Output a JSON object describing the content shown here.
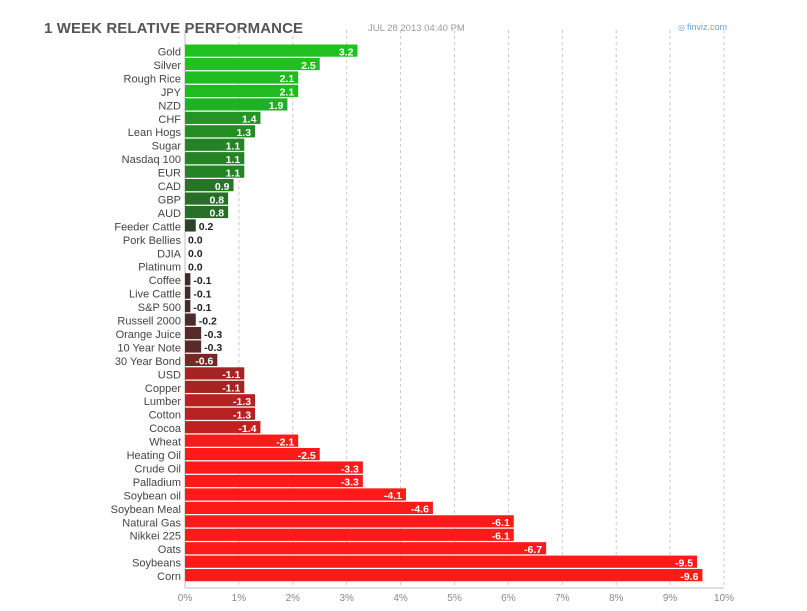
{
  "header": {
    "title": "1 WEEK RELATIVE PERFORMANCE",
    "timestamp": "JUL 28 2013 04:40 PM",
    "brand": "finviz.com",
    "brand_icon": "finviz-logo-icon"
  },
  "colors": {
    "positive_strong": "#1fc01f",
    "negative_strong": "#ff1a1a",
    "neutral_dark": "#2e2e2e",
    "grid": "#c8c8c8",
    "axis": "#bfbfbf"
  },
  "chart_data": {
    "type": "bar",
    "orientation": "horizontal",
    "title": "1 WEEK RELATIVE PERFORMANCE",
    "xlabel": "",
    "ylabel": "",
    "xlim": [
      0,
      10
    ],
    "xticks": [
      "0%",
      "1%",
      "2%",
      "3%",
      "4%",
      "5%",
      "6%",
      "7%",
      "8%",
      "9%",
      "10%"
    ],
    "grid": true,
    "categories": [
      "Gold",
      "Silver",
      "Rough Rice",
      "JPY",
      "NZD",
      "CHF",
      "Lean Hogs",
      "Sugar",
      "Nasdaq 100",
      "EUR",
      "CAD",
      "GBP",
      "AUD",
      "Feeder Cattle",
      "Pork Bellies",
      "DJIA",
      "Platinum",
      "Coffee",
      "Live Cattle",
      "S&P 500",
      "Russell 2000",
      "Orange Juice",
      "10 Year Note",
      "30 Year Bond",
      "USD",
      "Copper",
      "Lumber",
      "Cotton",
      "Cocoa",
      "Wheat",
      "Heating Oil",
      "Crude Oil",
      "Palladium",
      "Soybean oil",
      "Soybean Meal",
      "Natural Gas",
      "Nikkei 225",
      "Oats",
      "Soybeans",
      "Corn"
    ],
    "values": [
      3.2,
      2.5,
      2.1,
      2.1,
      1.9,
      1.4,
      1.3,
      1.1,
      1.1,
      1.1,
      0.9,
      0.8,
      0.8,
      0.2,
      0.0,
      0.0,
      0.0,
      -0.1,
      -0.1,
      -0.1,
      -0.2,
      -0.3,
      -0.3,
      -0.6,
      -1.1,
      -1.1,
      -1.3,
      -1.3,
      -1.4,
      -2.1,
      -2.5,
      -3.3,
      -3.3,
      -4.1,
      -4.6,
      -6.1,
      -6.1,
      -6.7,
      -9.5,
      -9.6
    ],
    "value_labels": [
      "3.2",
      "2.5",
      "2.1",
      "2.1",
      "1.9",
      "1.4",
      "1.3",
      "1.1",
      "1.1",
      "1.1",
      "0.9",
      "0.8",
      "0.8",
      "0.2",
      "0.0",
      "0.0",
      "0.0",
      "-0.1",
      "-0.1",
      "-0.1",
      "-0.2",
      "-0.3",
      "-0.3",
      "-0.6",
      "-1.1",
      "-1.1",
      "-1.3",
      "-1.3",
      "-1.4",
      "-2.1",
      "-2.5",
      "-3.3",
      "-3.3",
      "-4.1",
      "-4.6",
      "-6.1",
      "-6.1",
      "-6.7",
      "-9.5",
      "-9.6"
    ]
  }
}
